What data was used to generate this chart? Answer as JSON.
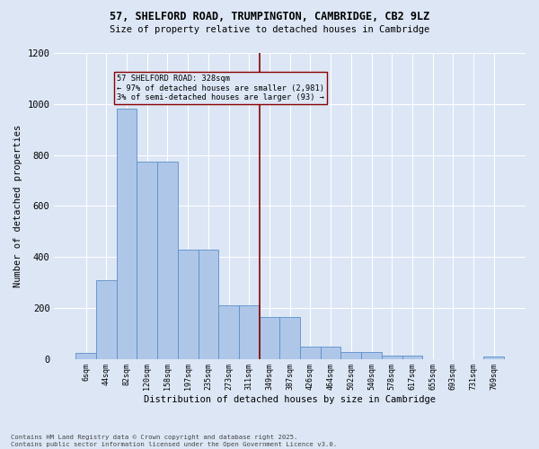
{
  "title_line1": "57, SHELFORD ROAD, TRUMPINGTON, CAMBRIDGE, CB2 9LZ",
  "title_line2": "Size of property relative to detached houses in Cambridge",
  "xlabel": "Distribution of detached houses by size in Cambridge",
  "ylabel": "Number of detached properties",
  "bar_labels": [
    "6sqm",
    "44sqm",
    "82sqm",
    "120sqm",
    "158sqm",
    "197sqm",
    "235sqm",
    "273sqm",
    "311sqm",
    "349sqm",
    "387sqm",
    "426sqm",
    "464sqm",
    "502sqm",
    "540sqm",
    "578sqm",
    "617sqm",
    "655sqm",
    "693sqm",
    "731sqm",
    "769sqm"
  ],
  "bar_values": [
    22,
    308,
    980,
    775,
    775,
    430,
    428,
    210,
    210,
    165,
    165,
    47,
    47,
    28,
    28,
    13,
    13,
    0,
    0,
    0,
    10
  ],
  "bar_color": "#aec6e8",
  "bar_edge_color": "#5b8fc9",
  "annotation_box_text": "57 SHELFORD ROAD: 328sqm\n← 97% of detached houses are smaller (2,981)\n3% of semi-detached houses are larger (93) →",
  "vline_x_index": 8.5,
  "vline_color": "#8b0000",
  "ylim": [
    0,
    1200
  ],
  "yticks": [
    0,
    200,
    400,
    600,
    800,
    1000,
    1200
  ],
  "footer_line1": "Contains HM Land Registry data © Crown copyright and database right 2025.",
  "footer_line2": "Contains public sector information licensed under the Open Government Licence v3.0.",
  "bg_color": "#dce6f5",
  "grid_color": "#ffffff"
}
